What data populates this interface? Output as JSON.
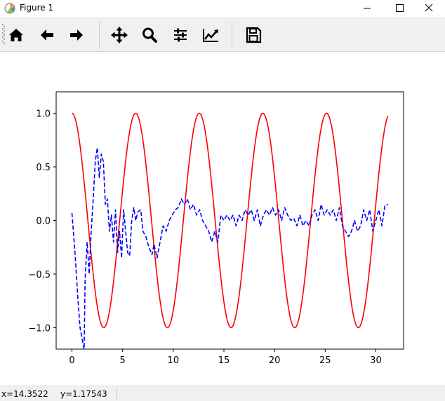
{
  "window": {
    "title": "Figure 1",
    "controls": [
      "minimize",
      "maximize",
      "close"
    ]
  },
  "toolbar": {
    "buttons": [
      {
        "name": "home-button",
        "icon": "home-icon"
      },
      {
        "name": "back-button",
        "icon": "arrow-left-icon"
      },
      {
        "name": "forward-button",
        "icon": "arrow-right-icon"
      },
      {
        "name": "pan-button",
        "icon": "move-icon"
      },
      {
        "name": "zoom-button",
        "icon": "magnifier-icon"
      },
      {
        "name": "subplots-button",
        "icon": "sliders-icon"
      },
      {
        "name": "edit-axes-button",
        "icon": "line-chart-icon"
      },
      {
        "name": "save-button",
        "icon": "floppy-disk-icon"
      }
    ]
  },
  "status": {
    "x_readout": "x=14.3522",
    "y_readout": "y=1.17543"
  },
  "chart_data": {
    "type": "line",
    "xlim": [
      -1.56,
      32.74
    ],
    "ylim": [
      -1.2,
      1.2
    ],
    "x_ticks": [
      0,
      5,
      10,
      15,
      20,
      25,
      30
    ],
    "x_tick_labels": [
      "0",
      "5",
      "10",
      "15",
      "20",
      "25",
      "30"
    ],
    "y_ticks": [
      1.0,
      0.5,
      0.0,
      -0.5,
      -1.0
    ],
    "y_tick_labels": [
      "1.0",
      "0.5",
      "0.0",
      "−0.5",
      "−1.0"
    ],
    "grid": false,
    "series": [
      {
        "style": "solid",
        "color": "#ff0000",
        "function": "cos(x)",
        "x_range": [
          0,
          31.2
        ]
      },
      {
        "style": "dashed",
        "color": "#0000ff",
        "points": [
          [
            0.0,
            0.07
          ],
          [
            0.3,
            -0.3
          ],
          [
            0.6,
            -0.75
          ],
          [
            0.8,
            -1.0
          ],
          [
            1.0,
            -1.1
          ],
          [
            1.2,
            -1.2
          ],
          [
            1.3,
            -0.55
          ],
          [
            1.5,
            -0.2
          ],
          [
            1.7,
            -0.5
          ],
          [
            1.9,
            -0.1
          ],
          [
            2.1,
            0.2
          ],
          [
            2.3,
            0.55
          ],
          [
            2.5,
            0.68
          ],
          [
            2.7,
            0.4
          ],
          [
            2.9,
            0.62
          ],
          [
            3.1,
            0.55
          ],
          [
            3.3,
            0.15
          ],
          [
            3.5,
            0.2
          ],
          [
            3.7,
            -0.1
          ],
          [
            3.9,
            0.05
          ],
          [
            4.1,
            -0.2
          ],
          [
            4.3,
            0.1
          ],
          [
            4.5,
            -0.3
          ],
          [
            4.7,
            -0.1
          ],
          [
            4.9,
            -0.35
          ],
          [
            5.1,
            0.1
          ],
          [
            5.3,
            -0.1
          ],
          [
            5.5,
            -0.3
          ],
          [
            5.7,
            -0.33
          ],
          [
            5.9,
            0.0
          ],
          [
            6.1,
            0.12
          ],
          [
            6.3,
            0.0
          ],
          [
            6.5,
            0.08
          ],
          [
            6.8,
            0.1
          ],
          [
            7.0,
            -0.1
          ],
          [
            7.3,
            -0.15
          ],
          [
            7.6,
            -0.25
          ],
          [
            7.9,
            -0.32
          ],
          [
            8.1,
            -0.22
          ],
          [
            8.4,
            -0.35
          ],
          [
            8.7,
            -0.2
          ],
          [
            9.0,
            -0.05
          ],
          [
            9.3,
            -0.1
          ],
          [
            9.6,
            0.0
          ],
          [
            9.9,
            0.05
          ],
          [
            10.2,
            0.1
          ],
          [
            10.5,
            0.12
          ],
          [
            10.8,
            0.2
          ],
          [
            11.1,
            0.15
          ],
          [
            11.4,
            0.2
          ],
          [
            11.7,
            0.1
          ],
          [
            12.0,
            0.15
          ],
          [
            12.3,
            0.05
          ],
          [
            12.6,
            0.1
          ],
          [
            12.9,
            0.0
          ],
          [
            13.2,
            -0.05
          ],
          [
            13.5,
            -0.1
          ],
          [
            13.8,
            -0.2
          ],
          [
            14.1,
            -0.1
          ],
          [
            14.4,
            -0.2
          ],
          [
            14.7,
            0.05
          ],
          [
            15.0,
            0.0
          ],
          [
            15.3,
            0.05
          ],
          [
            15.6,
            0.0
          ],
          [
            15.9,
            0.05
          ],
          [
            16.2,
            -0.05
          ],
          [
            16.5,
            0.05
          ],
          [
            16.8,
            0.0
          ],
          [
            17.1,
            0.1
          ],
          [
            17.4,
            0.05
          ],
          [
            17.7,
            0.1
          ],
          [
            18.0,
            0.0
          ],
          [
            18.3,
            0.1
          ],
          [
            18.6,
            -0.05
          ],
          [
            18.9,
            0.05
          ],
          [
            19.2,
            0.1
          ],
          [
            19.5,
            0.05
          ],
          [
            19.8,
            0.12
          ],
          [
            20.1,
            0.05
          ],
          [
            20.4,
            0.1
          ],
          [
            20.7,
            0.0
          ],
          [
            21.0,
            0.12
          ],
          [
            21.3,
            0.05
          ],
          [
            21.6,
            0.0
          ],
          [
            21.9,
            0.02
          ],
          [
            22.2,
            -0.05
          ],
          [
            22.5,
            0.05
          ],
          [
            22.8,
            -0.05
          ],
          [
            23.1,
            0.0
          ],
          [
            23.4,
            -0.05
          ],
          [
            23.7,
            0.05
          ],
          [
            24.0,
            0.1
          ],
          [
            24.3,
            0.0
          ],
          [
            24.6,
            0.15
          ],
          [
            24.9,
            0.05
          ],
          [
            25.2,
            0.1
          ],
          [
            25.5,
            0.05
          ],
          [
            25.8,
            0.1
          ],
          [
            26.1,
            0.0
          ],
          [
            26.4,
            0.12
          ],
          [
            26.7,
            -0.05
          ],
          [
            27.0,
            -0.1
          ],
          [
            27.3,
            -0.15
          ],
          [
            27.6,
            -0.1
          ],
          [
            27.9,
            0.0
          ],
          [
            28.2,
            -0.1
          ],
          [
            28.5,
            -0.05
          ],
          [
            28.8,
            0.1
          ],
          [
            29.1,
            0.0
          ],
          [
            29.4,
            0.1
          ],
          [
            29.7,
            -0.1
          ],
          [
            30.0,
            0.0
          ],
          [
            30.3,
            0.1
          ],
          [
            30.6,
            -0.05
          ],
          [
            30.9,
            0.14
          ],
          [
            31.2,
            0.15
          ]
        ]
      }
    ]
  }
}
